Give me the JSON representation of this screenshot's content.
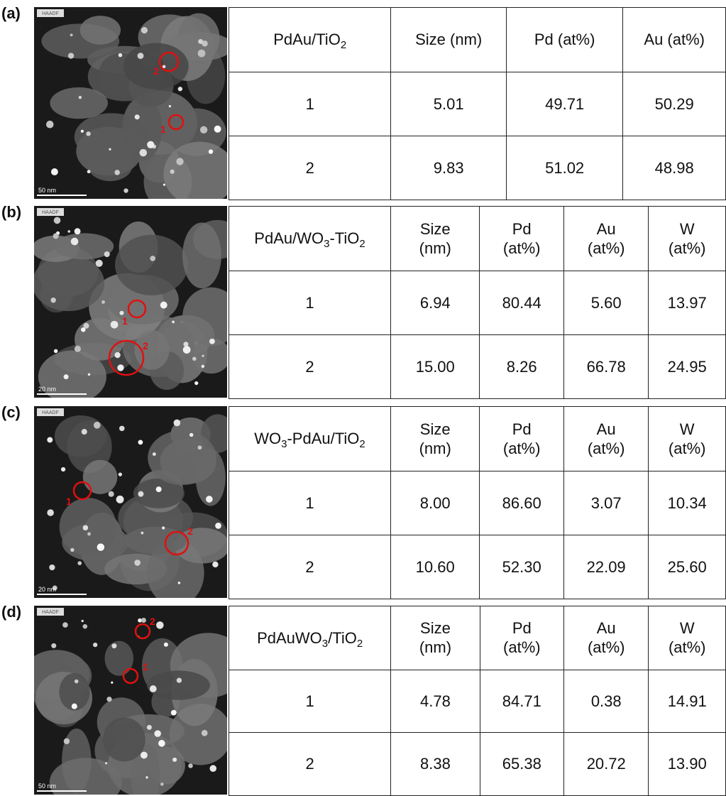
{
  "panels": [
    {
      "label": "(a)",
      "image": {
        "detector": "HAADF",
        "scale_bar": "50 nm",
        "markers": [
          "1",
          "2"
        ]
      },
      "table": {
        "header": [
          {
            "parts": [
              "PdAu/TiO",
              "2"
            ]
          },
          {
            "parts": [
              "Size (nm)"
            ]
          },
          {
            "parts": [
              "Pd (at%)"
            ]
          },
          {
            "parts": [
              "Au (at%)"
            ]
          }
        ],
        "rows": [
          [
            "1",
            "5.01",
            "49.71",
            "50.29"
          ],
          [
            "2",
            "9.83",
            "51.02",
            "48.98"
          ]
        ]
      }
    },
    {
      "label": "(b)",
      "image": {
        "detector": "HAADF",
        "scale_bar": "20 nm",
        "markers": [
          "1",
          "2"
        ]
      },
      "table": {
        "header": [
          {
            "parts": [
              "PdAu/WO",
              "3",
              "-TiO",
              "2"
            ]
          },
          {
            "parts": [
              "Size (nm)"
            ]
          },
          {
            "parts": [
              "Pd (at%)"
            ]
          },
          {
            "parts": [
              "Au (at%)"
            ]
          },
          {
            "parts": [
              "W (at%)"
            ]
          }
        ],
        "rows": [
          [
            "1",
            "6.94",
            "80.44",
            "5.60",
            "13.97"
          ],
          [
            "2",
            "15.00",
            "8.26",
            "66.78",
            "24.95"
          ]
        ]
      }
    },
    {
      "label": "(c)",
      "image": {
        "detector": "HAADF",
        "scale_bar": "20 nm",
        "markers": [
          "1",
          "2"
        ]
      },
      "table": {
        "header": [
          {
            "parts": [
              "WO",
              "3",
              "-PdAu/TiO",
              "2"
            ]
          },
          {
            "parts": [
              "Size (nm)"
            ]
          },
          {
            "parts": [
              "Pd (at%)"
            ]
          },
          {
            "parts": [
              "Au (at%)"
            ]
          },
          {
            "parts": [
              "W (at%)"
            ]
          }
        ],
        "rows": [
          [
            "1",
            "8.00",
            "86.60",
            "3.07",
            "10.34"
          ],
          [
            "2",
            "10.60",
            "52.30",
            "22.09",
            "25.60"
          ]
        ]
      }
    },
    {
      "label": "(d)",
      "image": {
        "detector": "HAADF",
        "scale_bar": "50 nm",
        "markers": [
          "1",
          "2"
        ]
      },
      "table": {
        "header": [
          {
            "parts": [
              "PdAuWO",
              "3",
              "/TiO",
              "2"
            ]
          },
          {
            "parts": [
              "Size (nm)"
            ]
          },
          {
            "parts": [
              "Pd (at%)"
            ]
          },
          {
            "parts": [
              "Au (at%)"
            ]
          },
          {
            "parts": [
              "W (at%)"
            ]
          }
        ],
        "rows": [
          [
            "1",
            "4.78",
            "84.71",
            "0.38",
            "14.91"
          ],
          [
            "2",
            "8.38",
            "65.38",
            "20.72",
            "13.90"
          ]
        ]
      }
    }
  ]
}
